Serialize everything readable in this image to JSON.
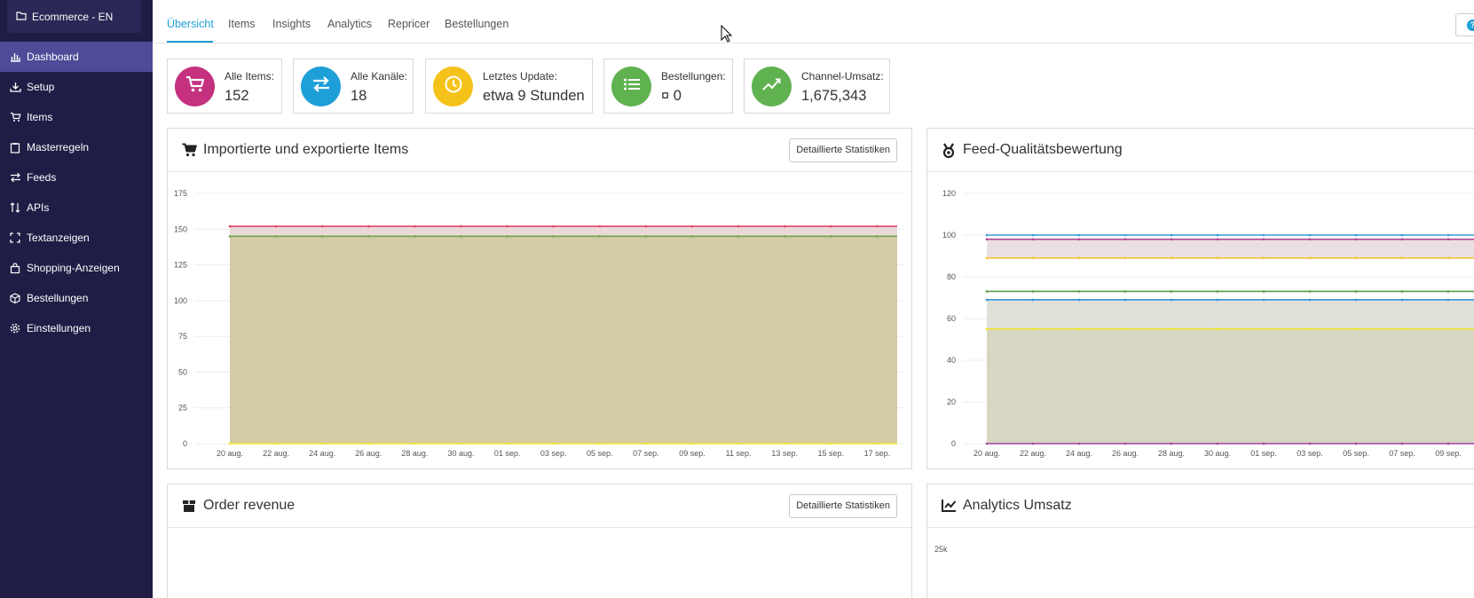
{
  "sidebar": {
    "workspace": "Ecommerce - EN",
    "items": [
      {
        "label": "Dashboard",
        "icon": "bar-chart-icon",
        "active": true
      },
      {
        "label": "Setup",
        "icon": "download-icon"
      },
      {
        "label": "Items",
        "icon": "cart-icon"
      },
      {
        "label": "Masterregeln",
        "icon": "clipboard-icon"
      },
      {
        "label": "Feeds",
        "icon": "exchange-icon"
      },
      {
        "label": "APIs",
        "icon": "sort-arrows-icon"
      },
      {
        "label": "Textanzeigen",
        "icon": "frame-icon"
      },
      {
        "label": "Shopping-Anzeigen",
        "icon": "shopping-bag-icon"
      },
      {
        "label": "Bestellungen",
        "icon": "box-icon"
      },
      {
        "label": "Einstellungen",
        "icon": "gear-icon"
      }
    ]
  },
  "tabs": [
    {
      "label": "Übersicht",
      "active": true
    },
    {
      "label": "Items"
    },
    {
      "label": "Insights"
    },
    {
      "label": "Analytics"
    },
    {
      "label": "Repricer"
    },
    {
      "label": "Bestellungen"
    }
  ],
  "help_icon": "?",
  "stats": [
    {
      "label": "Alle Items:",
      "value": "152",
      "color": "#c5317e",
      "icon": "cart-icon"
    },
    {
      "label": "Alle Kanäle:",
      "value": "18",
      "color": "#1e9fd8",
      "icon": "exchange-icon"
    },
    {
      "label": "Letztes Update:",
      "value": "etwa 9 Stunden",
      "color": "#f5c21b",
      "icon": "clock-icon"
    },
    {
      "label": "Bestellungen:",
      "value": "¤ 0",
      "color": "#5fb24f",
      "icon": "list-icon"
    },
    {
      "label": "Channel-Umsatz:",
      "value": "1,675,343",
      "color": "#5fb24f",
      "icon": "trend-icon"
    }
  ],
  "panels": {
    "items_chart": {
      "title": "Importierte und exportierte Items",
      "button": "Detaillierte Statistiken",
      "icon": "cart-icon"
    },
    "feed_quality": {
      "title": "Feed-Qualitätsbewertung",
      "icon": "medal-icon"
    },
    "order_revenue": {
      "title": "Order revenue",
      "button": "Detaillierte Statistiken",
      "icon": "box-icon"
    },
    "analytics": {
      "title": "Analytics Umsatz",
      "icon": "line-chart-icon",
      "y_tick": "25k"
    }
  },
  "chart_data": [
    {
      "type": "area",
      "categories": [
        "20 aug.",
        "22 aug.",
        "24 aug.",
        "26 aug.",
        "28 aug.",
        "30 aug.",
        "01 sep.",
        "03 sep.",
        "05 sep.",
        "07 sep.",
        "09 sep.",
        "11 sep.",
        "13 sep.",
        "15 sep.",
        "17 sep."
      ],
      "ylim": [
        0,
        175
      ],
      "yticks": [
        0,
        25,
        50,
        75,
        100,
        125,
        150,
        175
      ],
      "series": [
        {
          "values": [
            152,
            152,
            152,
            152,
            152,
            152,
            152,
            152,
            152,
            152,
            152,
            152,
            152,
            152,
            152
          ],
          "color": "#e0466a",
          "fill": "#ead9d9"
        },
        {
          "values": [
            145,
            145,
            145,
            145,
            145,
            145,
            145,
            145,
            145,
            145,
            145,
            145,
            145,
            145,
            145
          ],
          "color": "#6aa84f",
          "fill": "#d4cba7"
        },
        {
          "values": [
            0,
            0,
            0,
            0,
            0,
            0,
            0,
            0,
            0,
            0,
            0,
            0,
            0,
            0,
            0
          ],
          "color": "#f1e52a"
        }
      ],
      "grid": true
    },
    {
      "type": "area",
      "categories": [
        "20 aug.",
        "22 aug.",
        "24 aug.",
        "26 aug.",
        "28 aug.",
        "30 aug.",
        "01 sep.",
        "03 sep.",
        "05 sep.",
        "07 sep.",
        "09 sep."
      ],
      "ylim": [
        0,
        120
      ],
      "yticks": [
        0,
        20,
        40,
        60,
        80,
        100,
        120
      ],
      "series": [
        {
          "values": [
            100,
            100,
            100,
            100,
            100,
            100,
            100,
            100,
            100,
            100,
            100
          ],
          "color": "#3b97d8"
        },
        {
          "values": [
            98,
            98,
            98,
            98,
            98,
            98,
            98,
            98,
            98,
            98,
            98
          ],
          "color": "#b0418f",
          "fill": "#eadfe3"
        },
        {
          "values": [
            89,
            89,
            89,
            89,
            89,
            89,
            89,
            89,
            89,
            89,
            89
          ],
          "color": "#f5c232"
        },
        {
          "values": [
            73,
            73,
            73,
            73,
            73,
            73,
            73,
            73,
            73,
            73,
            73
          ],
          "color": "#5a9a4a"
        },
        {
          "values": [
            69,
            69,
            69,
            69,
            69,
            69,
            69,
            69,
            69,
            69,
            69
          ],
          "color": "#3b97d8",
          "fill": "#dfe0d8"
        },
        {
          "values": [
            55,
            55,
            55,
            55,
            55,
            55,
            55,
            55,
            55,
            55,
            55
          ],
          "color": "#f1e52a",
          "fill": "#d6d6c2"
        },
        {
          "values": [
            0,
            0,
            0,
            0,
            0,
            0,
            0,
            0,
            0,
            0,
            0
          ],
          "color": "#a341a8"
        }
      ],
      "grid": true
    }
  ]
}
